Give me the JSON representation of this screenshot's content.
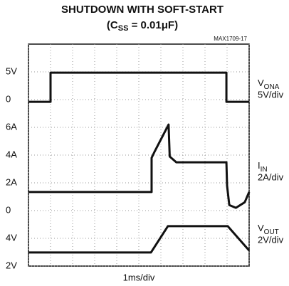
{
  "chart_data": {
    "type": "line",
    "title": "SHUTDOWN WITH SOFT-START",
    "subtitle": [
      "(C",
      "SS",
      " = 0.01μF)"
    ],
    "figure_id": "MAX1709-17",
    "xlabel": "1ms/div",
    "xlim": [
      0,
      10
    ],
    "xticks": [
      0,
      1,
      2,
      3,
      4,
      5,
      6,
      7,
      8,
      9,
      10
    ],
    "ylim": [
      0,
      8
    ],
    "yticks": [
      {
        "value": 0,
        "label": "2V"
      },
      {
        "value": 1,
        "label": "4V"
      },
      {
        "value": 2,
        "label": "0"
      },
      {
        "value": 3,
        "label": "2A"
      },
      {
        "value": 4,
        "label": "4A"
      },
      {
        "value": 5,
        "label": "6A"
      },
      {
        "value": 6,
        "label": "0"
      },
      {
        "value": 7,
        "label": "5V"
      }
    ],
    "grid": true,
    "series": [
      {
        "name": [
          "V",
          "ONA"
        ],
        "scale": "5V/div",
        "color": "#111111",
        "x": [
          0,
          1.0,
          1.0,
          8.97,
          8.97,
          10
        ],
        "values": [
          5.92,
          5.92,
          6.97,
          6.97,
          5.92,
          5.92
        ]
      },
      {
        "name": [
          "I",
          "IN"
        ],
        "scale": "2A/div",
        "color": "#111111",
        "x": [
          0,
          5.58,
          5.58,
          5.7,
          6.35,
          6.4,
          6.7,
          8.97,
          9.0,
          9.1,
          9.4,
          9.8,
          10
        ],
        "values": [
          2.67,
          2.67,
          3.9,
          4.1,
          5.1,
          3.95,
          3.74,
          3.74,
          2.9,
          2.2,
          2.1,
          2.3,
          2.67
        ]
      },
      {
        "name": [
          "V",
          "OUT"
        ],
        "scale": "2V/div",
        "color": "#111111",
        "x": [
          0,
          5.55,
          6.32,
          9.03,
          10
        ],
        "values": [
          0.49,
          0.49,
          1.44,
          1.44,
          0.56
        ]
      }
    ]
  }
}
